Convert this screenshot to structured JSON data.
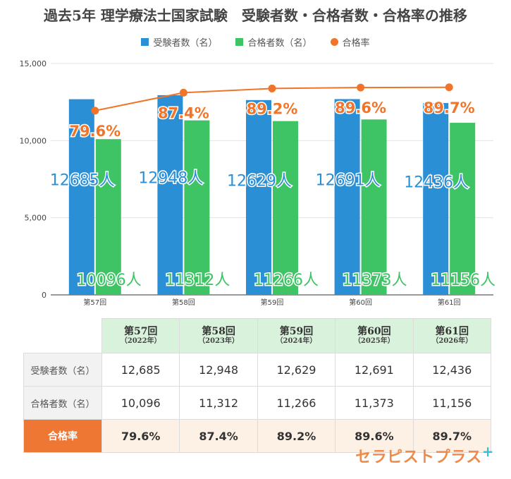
{
  "chart_data": {
    "type": "bar",
    "title": "過去5年 理学療法士国家試験　受験者数・合格者数・合格率の推移",
    "categories": [
      "第57回",
      "第58回",
      "第59回",
      "第60回",
      "第61回"
    ],
    "series": [
      {
        "name": "受験者数（名）",
        "values": [
          12685,
          12948,
          12629,
          12691,
          12436
        ],
        "color": "#2b8fd6",
        "labels": [
          "12685人",
          "12948人",
          "12629人",
          "12691人",
          "12436人"
        ]
      },
      {
        "name": "合格者数（名）",
        "values": [
          10096,
          11312,
          11266,
          11373,
          11156
        ],
        "color": "#3fc465",
        "labels": [
          "10096人",
          "11312人",
          "11266人",
          "11373人",
          "11156人"
        ]
      },
      {
        "name": "合格率",
        "type": "line",
        "values": [
          79.6,
          87.4,
          89.2,
          89.6,
          89.7
        ],
        "color": "#f0752a",
        "labels": [
          "79.6%",
          "87.4%",
          "89.2%",
          "89.6%",
          "89.7%"
        ]
      }
    ],
    "yticks": [
      "0",
      "5,000",
      "10,000",
      "15,000"
    ],
    "ytick_values": [
      0,
      5000,
      10000,
      15000
    ],
    "ylim": [
      0,
      15000
    ],
    "rate_axis_hidden": true,
    "grid": true,
    "legend": "top"
  },
  "table": {
    "columns": [
      {
        "main": "第57回",
        "sub": "（2022年）"
      },
      {
        "main": "第58回",
        "sub": "（2023年）"
      },
      {
        "main": "第59回",
        "sub": "（2024年）"
      },
      {
        "main": "第60回",
        "sub": "（2025年）"
      },
      {
        "main": "第61回",
        "sub": "（2026年）"
      }
    ],
    "rows": [
      {
        "label": "受験者数（名）",
        "values": [
          "12,685",
          "12,948",
          "12,629",
          "12,691",
          "12,436"
        ]
      },
      {
        "label": "合格者数（名）",
        "values": [
          "10,096",
          "11,312",
          "11,266",
          "11,373",
          "11,156"
        ]
      },
      {
        "label": "合格率",
        "values": [
          "79.6%",
          "87.4%",
          "89.2%",
          "89.6%",
          "89.7%"
        ]
      }
    ]
  },
  "brand": {
    "text": "セラピストプラス",
    "plus": "+"
  }
}
